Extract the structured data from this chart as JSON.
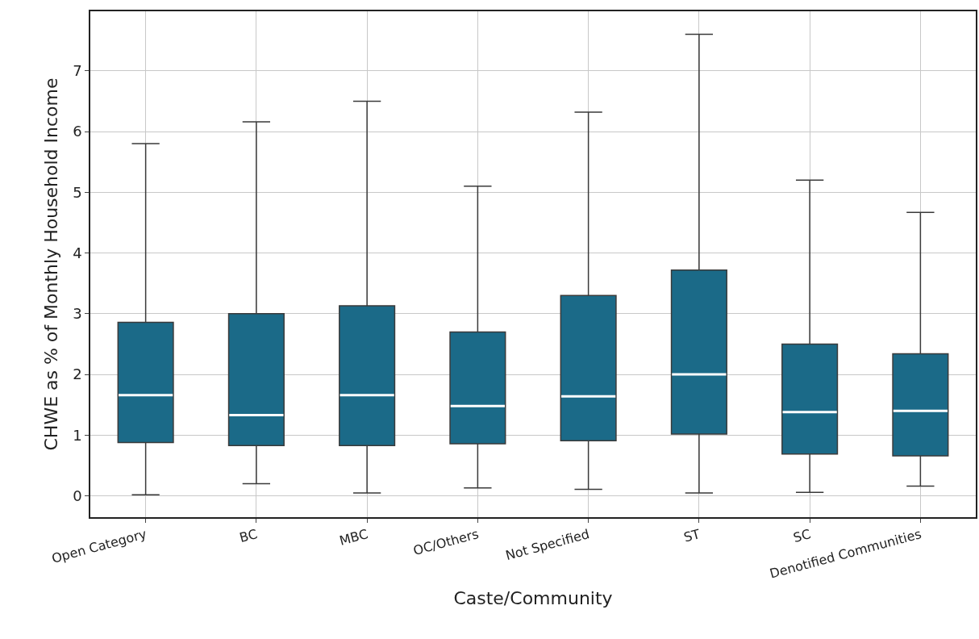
{
  "chart_data": {
    "type": "box",
    "xlabel": "Caste/Community",
    "ylabel": "CHWE as % of Monthly Household Income",
    "categories": [
      "Open Category",
      "BC",
      "MBC",
      "OC/Others",
      "Not Specified",
      "ST",
      "SC",
      "Denotified Communities"
    ],
    "color": "#1b6a88",
    "boxes": [
      {
        "low": 0.02,
        "q1": 0.88,
        "median": 1.66,
        "q3": 2.86,
        "high": 5.8
      },
      {
        "low": 0.2,
        "q1": 0.83,
        "median": 1.33,
        "q3": 3.0,
        "high": 6.16
      },
      {
        "low": 0.05,
        "q1": 0.83,
        "median": 1.66,
        "q3": 3.13,
        "high": 6.5
      },
      {
        "low": 0.13,
        "q1": 0.86,
        "median": 1.48,
        "q3": 2.7,
        "high": 5.1
      },
      {
        "low": 0.11,
        "q1": 0.91,
        "median": 1.64,
        "q3": 3.3,
        "high": 6.32
      },
      {
        "low": 0.05,
        "q1": 1.02,
        "median": 2.0,
        "q3": 3.72,
        "high": 7.6
      },
      {
        "low": 0.06,
        "q1": 0.69,
        "median": 1.38,
        "q3": 2.5,
        "high": 5.2
      },
      {
        "low": 0.16,
        "q1": 0.66,
        "median": 1.4,
        "q3": 2.34,
        "high": 4.67
      }
    ],
    "ylim": [
      -0.35,
      7.98
    ],
    "yticks": [
      0,
      1,
      2,
      3,
      4,
      5,
      6,
      7
    ],
    "grid": true
  }
}
